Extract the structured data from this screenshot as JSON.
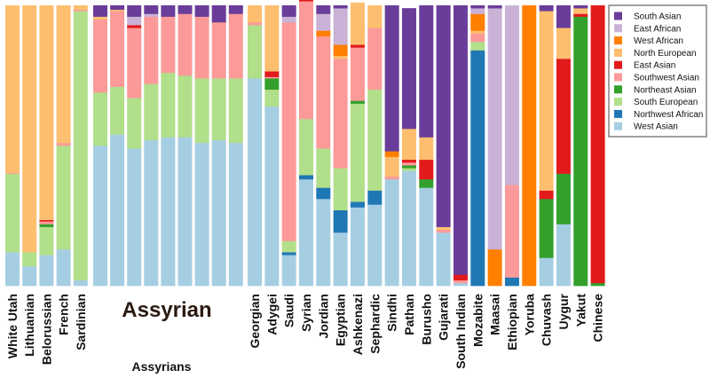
{
  "chart_data": {
    "type": "bar",
    "stacked": true,
    "normalized": true,
    "ylim": [
      0,
      1
    ],
    "grid": false,
    "legend_position": "right",
    "group_label": "Assyrian",
    "group_sublabel": "Assyrians",
    "components": [
      {
        "name": "West Asian",
        "color": "#a6cee3"
      },
      {
        "name": "Northwest African",
        "color": "#1f78b4"
      },
      {
        "name": "South European",
        "color": "#b2df8a"
      },
      {
        "name": "Northeast Asian",
        "color": "#33a02c"
      },
      {
        "name": "Southwest Asian",
        "color": "#fb9a99"
      },
      {
        "name": "East Asian",
        "color": "#e31a1c"
      },
      {
        "name": "North European",
        "color": "#fdbf6f"
      },
      {
        "name": "West African",
        "color": "#ff7f00"
      },
      {
        "name": "East African",
        "color": "#cab2d6"
      },
      {
        "name": "South Asian",
        "color": "#6a3d9a"
      }
    ],
    "legend_order": [
      "South Asian",
      "East African",
      "West African",
      "North European",
      "East Asian",
      "Southwest Asian",
      "Northeast Asian",
      "South European",
      "Northwest African",
      "West Asian"
    ],
    "populations": [
      {
        "label": "White Utah",
        "values": [
          0.12,
          0,
          0.28,
          0,
          0.003,
          0,
          0.597,
          0,
          0,
          0
        ]
      },
      {
        "label": "Lithuanian",
        "values": [
          0.07,
          0,
          0.05,
          0,
          0,
          0,
          0.88,
          0,
          0,
          0
        ]
      },
      {
        "label": "Belorussian",
        "values": [
          0.11,
          0,
          0.1,
          0.01,
          0.01,
          0.005,
          0.765,
          0,
          0,
          0
        ]
      },
      {
        "label": "French",
        "values": [
          0.13,
          0,
          0.37,
          0,
          0.01,
          0,
          0.49,
          0,
          0,
          0
        ]
      },
      {
        "label": "Sardinian",
        "values": [
          0.02,
          0,
          0.96,
          0,
          0.005,
          0,
          0.015,
          0,
          0,
          0
        ]
      },
      {
        "label": "",
        "values": [
          0.5,
          0,
          0.19,
          0,
          0.26,
          0,
          0.01,
          0,
          0,
          0.04
        ],
        "group": "Assyrian"
      },
      {
        "label": "",
        "values": [
          0.54,
          0,
          0.17,
          0,
          0.27,
          0,
          0.005,
          0,
          0,
          0.015
        ],
        "group": "Assyrian"
      },
      {
        "label": "",
        "values": [
          0.49,
          0,
          0.18,
          0,
          0.25,
          0.01,
          0,
          0,
          0.03,
          0.04
        ],
        "group": "Assyrian"
      },
      {
        "label": "",
        "values": [
          0.52,
          0,
          0.2,
          0,
          0.24,
          0,
          0,
          0,
          0.01,
          0.03
        ],
        "group": "Assyrian"
      },
      {
        "label": "",
        "values": [
          0.53,
          0,
          0.23,
          0,
          0.2,
          0,
          0,
          0,
          0,
          0.04
        ],
        "group": "Assyrian"
      },
      {
        "label": "",
        "values": [
          0.53,
          0,
          0.22,
          0,
          0.22,
          0,
          0,
          0,
          0,
          0.03
        ],
        "group": "Assyrian"
      },
      {
        "label": "",
        "values": [
          0.51,
          0,
          0.23,
          0,
          0.22,
          0,
          0,
          0,
          0,
          0.04
        ],
        "group": "Assyrian"
      },
      {
        "label": "",
        "values": [
          0.52,
          0,
          0.22,
          0,
          0.2,
          0,
          0,
          0,
          0,
          0.06
        ],
        "group": "Assyrian"
      },
      {
        "label": "",
        "values": [
          0.51,
          0,
          0.23,
          0,
          0.23,
          0,
          0,
          0,
          0,
          0.03
        ],
        "group": "Assyrian"
      },
      {
        "label": "Georgian",
        "values": [
          0.74,
          0,
          0.19,
          0,
          0.01,
          0,
          0.06,
          0,
          0,
          0
        ]
      },
      {
        "label": "Adygei",
        "values": [
          0.64,
          0,
          0.06,
          0.04,
          0.005,
          0.02,
          0.235,
          0,
          0,
          0
        ]
      },
      {
        "label": "Saudi",
        "values": [
          0.11,
          0.01,
          0.04,
          0,
          0.78,
          0,
          0,
          0,
          0.02,
          0.04
        ]
      },
      {
        "label": "Syrian",
        "values": [
          0.38,
          0.015,
          0.2,
          0,
          0.42,
          0.005,
          0.02,
          0.01,
          0,
          0
        ]
      },
      {
        "label": "Jordian",
        "values": [
          0.31,
          0.04,
          0.14,
          0,
          0.4,
          0,
          0,
          0.02,
          0.06,
          0.03
        ]
      },
      {
        "label": "Egyptian",
        "values": [
          0.19,
          0.08,
          0.15,
          0,
          0.39,
          0,
          0.01,
          0.04,
          0.13,
          0.01
        ]
      },
      {
        "label": "Ashkenazi",
        "values": [
          0.28,
          0.02,
          0.35,
          0.01,
          0.19,
          0.01,
          0.15,
          0,
          0,
          0
        ]
      },
      {
        "label": "Sephardic",
        "values": [
          0.29,
          0.05,
          0.36,
          0,
          0.22,
          0,
          0.08,
          0,
          0,
          0
        ]
      },
      {
        "label": "Sindhi",
        "values": [
          0.38,
          0,
          0,
          0,
          0.01,
          0,
          0.07,
          0.02,
          0,
          0.52
        ]
      },
      {
        "label": "Pathan",
        "values": [
          0.41,
          0,
          0.01,
          0.01,
          0.01,
          0.01,
          0.11,
          0,
          0,
          0.43
        ]
      },
      {
        "label": "Burusho",
        "values": [
          0.35,
          0,
          0,
          0.03,
          0,
          0.07,
          0.08,
          0,
          0,
          0.47
        ]
      },
      {
        "label": "Gujarati",
        "values": [
          0.19,
          0,
          0,
          0,
          0.01,
          0,
          0.01,
          0,
          0,
          0.79
        ]
      },
      {
        "label": "South Indian",
        "values": [
          0.01,
          0,
          0,
          0,
          0.01,
          0.02,
          0,
          0,
          0,
          0.96
        ]
      },
      {
        "label": "Mozabite",
        "values": [
          0,
          0.84,
          0.03,
          0,
          0.03,
          0,
          0.01,
          0.06,
          0.02,
          0.01
        ]
      },
      {
        "label": "Maasai",
        "values": [
          0,
          0,
          0,
          0,
          0,
          0,
          0,
          0.13,
          0.86,
          0.01
        ]
      },
      {
        "label": "Ethiopian",
        "values": [
          0,
          0.03,
          0,
          0,
          0.33,
          0,
          0,
          0,
          0.64,
          0
        ]
      },
      {
        "label": "Yoruba",
        "values": [
          0,
          0,
          0,
          0,
          0,
          0,
          0,
          1,
          0,
          0
        ]
      },
      {
        "label": "Chuvash",
        "values": [
          0.1,
          0,
          0,
          0.21,
          0,
          0.03,
          0.64,
          0,
          0,
          0.02
        ]
      },
      {
        "label": "Uygur",
        "values": [
          0.22,
          0,
          0,
          0.18,
          0,
          0.41,
          0.11,
          0,
          0,
          0.08
        ]
      },
      {
        "label": "Yakut",
        "values": [
          0,
          0,
          0,
          0.96,
          0,
          0.01,
          0.02,
          0,
          0,
          0.01
        ]
      },
      {
        "label": "Chinese",
        "values": [
          0,
          0,
          0,
          0.01,
          0,
          0.99,
          0,
          0,
          0,
          0
        ]
      }
    ]
  }
}
